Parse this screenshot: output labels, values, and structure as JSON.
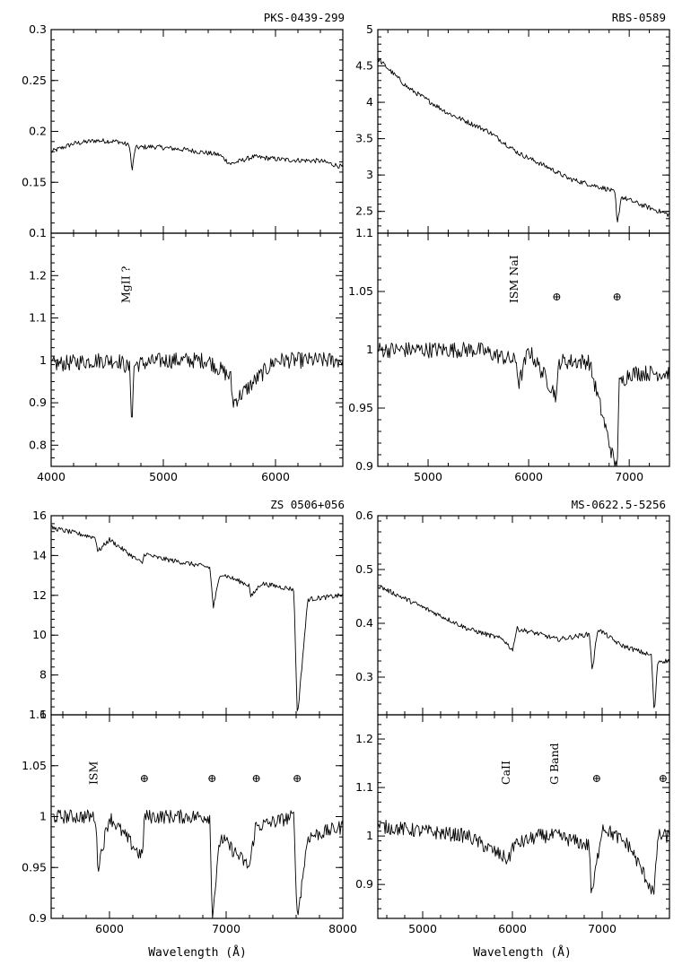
{
  "chart_data": [
    {
      "type": "line",
      "title": "PKS-0439-299",
      "xlim": [
        4000,
        6600
      ],
      "ylim": [
        0.1,
        0.3
      ],
      "xticks": [
        4000,
        5000,
        6000
      ],
      "yticks": [
        "0.1",
        "0.15",
        "0.2",
        "0.25",
        "0.3"
      ],
      "x": [
        4000,
        4200,
        4400,
        4600,
        4700,
        4720,
        4750,
        4900,
        5200,
        5500,
        5600,
        5800,
        6100,
        6400,
        6600
      ],
      "y": [
        0.18,
        0.188,
        0.191,
        0.19,
        0.186,
        0.16,
        0.184,
        0.185,
        0.182,
        0.177,
        0.168,
        0.175,
        0.172,
        0.171,
        0.165
      ]
    },
    {
      "type": "line",
      "title": "",
      "xlim": [
        4000,
        6600
      ],
      "ylim": [
        0.75,
        1.3
      ],
      "xticks": [
        "4000",
        "5000",
        "6000"
      ],
      "yticks": [
        "0.8",
        "0.9",
        "1",
        "1.1",
        "1.2"
      ],
      "x": [
        4000,
        4400,
        4600,
        4700,
        4720,
        4740,
        5000,
        5400,
        5600,
        5620,
        6000,
        6200,
        6600
      ],
      "y": [
        0.99,
        1.0,
        1.0,
        0.98,
        0.85,
        0.99,
        1.0,
        1.0,
        0.96,
        0.9,
        1.0,
        1.0,
        1.0
      ],
      "annotations": [
        {
          "text": "MgII ?",
          "x": 4700
        }
      ]
    },
    {
      "type": "line",
      "title": "RBS-0589",
      "xlim": [
        4500,
        7400
      ],
      "ylim": [
        2.2,
        5
      ],
      "xticks": [
        5000,
        6000,
        7000
      ],
      "yticks": [
        "2.5",
        "3",
        "3.5",
        "4",
        "4.5",
        "5"
      ],
      "x": [
        4500,
        4800,
        5200,
        5600,
        5900,
        6200,
        6400,
        6800,
        6860,
        6880,
        6920,
        7100,
        7400
      ],
      "y": [
        4.6,
        4.2,
        3.85,
        3.6,
        3.3,
        3.1,
        2.95,
        2.8,
        2.75,
        2.3,
        2.7,
        2.6,
        2.45
      ]
    },
    {
      "type": "line",
      "title": "",
      "xlim": [
        4500,
        7400
      ],
      "ylim": [
        0.9,
        1.1
      ],
      "xticks": [
        "5000",
        "6000",
        "7000"
      ],
      "yticks": [
        "0.9",
        "0.95",
        "1",
        "1.05",
        "1.1"
      ],
      "x": [
        4500,
        5000,
        5500,
        5880,
        5900,
        6000,
        6280,
        6300,
        6600,
        6860,
        6880,
        6900,
        7000,
        7400
      ],
      "y": [
        1.0,
        1.0,
        1.0,
        0.99,
        0.97,
        1.0,
        0.96,
        0.99,
        0.99,
        0.9,
        0.9,
        0.97,
        0.98,
        0.98
      ],
      "annotations": [
        {
          "text": "ISM NaI",
          "x": 5890
        },
        {
          "text": "⊕",
          "x": 6280
        },
        {
          "text": "⊕",
          "x": 6880
        }
      ]
    },
    {
      "type": "line",
      "title": "ZS 0506+056",
      "xlim": [
        5500,
        8000
      ],
      "ylim": [
        6,
        16
      ],
      "xticks": [
        6000,
        7000,
        8000
      ],
      "yticks": [
        "6",
        "8",
        "10",
        "12",
        "14",
        "16"
      ],
      "x": [
        5500,
        5880,
        5900,
        6000,
        6280,
        6300,
        6400,
        6860,
        6890,
        6950,
        7200,
        7210,
        7300,
        7580,
        7610,
        7620,
        7700,
        8000
      ],
      "y": [
        15.4,
        14.9,
        14.2,
        14.8,
        13.6,
        14.1,
        13.9,
        13.4,
        11.4,
        13.1,
        12.5,
        11.9,
        12.6,
        12.3,
        6.0,
        6.5,
        11.8,
        12.0
      ]
    },
    {
      "type": "line",
      "title": "",
      "xlim": [
        5500,
        8000
      ],
      "ylim": [
        0.9,
        1.1
      ],
      "xticks": [
        "6000",
        "7000",
        "8000"
      ],
      "yticks": [
        "0.9",
        "0.95",
        "1",
        "1.05",
        "1.1"
      ],
      "x": [
        5500,
        5880,
        5900,
        6000,
        6280,
        6300,
        6860,
        6880,
        6950,
        7200,
        7250,
        7580,
        7610,
        7700,
        8000
      ],
      "y": [
        1.0,
        1.0,
        0.95,
        1.0,
        0.96,
        1.0,
        1.0,
        0.9,
        0.98,
        0.95,
        0.99,
        1.0,
        0.9,
        0.98,
        0.99
      ],
      "annotations": [
        {
          "text": "ISM",
          "x": 5895
        },
        {
          "text": "⊕",
          "x": 6300
        },
        {
          "text": "⊕",
          "x": 6880
        },
        {
          "text": "⊕",
          "x": 7260
        },
        {
          "text": "⊕",
          "x": 7610
        }
      ]
    },
    {
      "type": "line",
      "title": "MS-0622.5-5256",
      "xlim": [
        4500,
        7750
      ],
      "ylim": [
        0.23,
        0.6
      ],
      "xticks": [
        5000,
        6000,
        7000
      ],
      "yticks": [
        "0.3",
        "0.4",
        "0.5",
        "0.6"
      ],
      "x": [
        4500,
        5000,
        5500,
        5900,
        6000,
        6050,
        6300,
        6500,
        6860,
        6890,
        6950,
        7200,
        7550,
        7580,
        7620,
        7750
      ],
      "y": [
        0.47,
        0.43,
        0.39,
        0.37,
        0.35,
        0.39,
        0.38,
        0.37,
        0.38,
        0.31,
        0.39,
        0.36,
        0.34,
        0.23,
        0.33,
        0.33
      ]
    },
    {
      "type": "line",
      "title": "",
      "xlim": [
        4500,
        7750
      ],
      "ylim": [
        0.83,
        1.25
      ],
      "xticks": [
        "5000",
        "6000",
        "7000"
      ],
      "yticks": [
        "0.9",
        "1",
        "1.1",
        "1.2"
      ],
      "xlabel": "Wavelength (Å)",
      "x": [
        4500,
        5000,
        5500,
        5960,
        6000,
        6300,
        6500,
        6860,
        6880,
        7000,
        7300,
        7580,
        7620,
        7750
      ],
      "y": [
        1.02,
        1.01,
        1.0,
        0.95,
        0.98,
        1.0,
        1.0,
        0.98,
        0.87,
        1.02,
        0.98,
        0.88,
        1.0,
        1.0
      ],
      "annotations": [
        {
          "text": "CaII",
          "x": 5970
        },
        {
          "text": "G Band",
          "x": 6510
        },
        {
          "text": "⊕",
          "x": 6940
        },
        {
          "text": "⊕",
          "x": 7680
        }
      ]
    }
  ],
  "labels": {
    "top_left_title": "PKS-0439-299",
    "top_right_title": "RBS-0589",
    "bottom_left_title": "ZS 0506+056",
    "bottom_right_title": "MS-0622.5-5256",
    "xlabel": "Wavelength (Å)"
  }
}
